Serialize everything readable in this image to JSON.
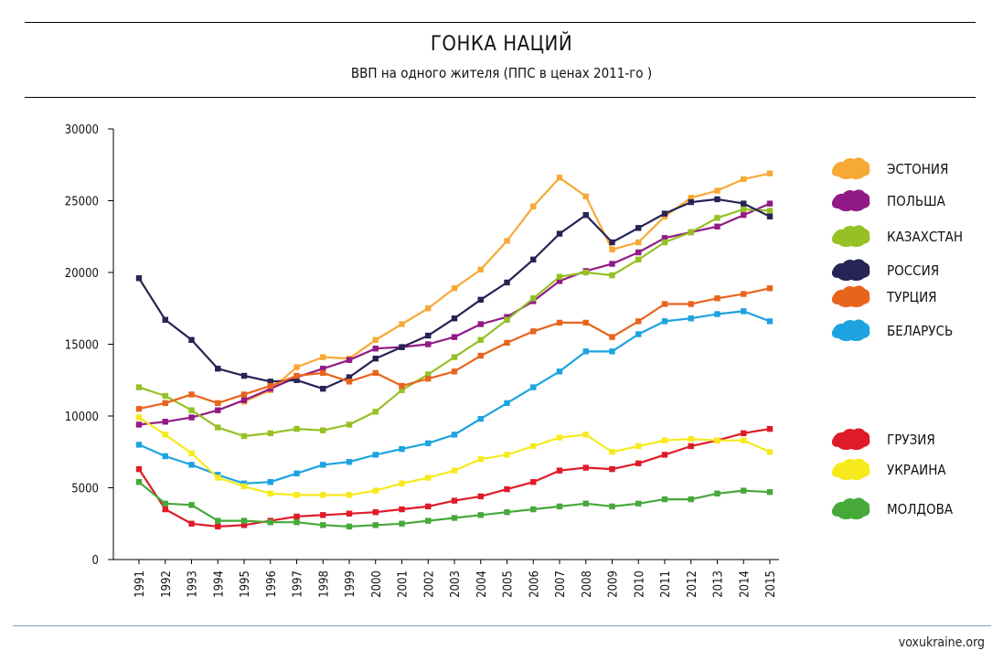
{
  "header": {
    "title": "ГОНКА НАЦИЙ",
    "subtitle": "ВВП на одного жителя (ППС в ценах 2011-го )"
  },
  "footer": {
    "credit": "voxukraine.org"
  },
  "chart_data": {
    "type": "line",
    "title": "ГОНКА НАЦИЙ",
    "subtitle": "ВВП на одного жителя (ППС в ценах 2011-го )",
    "xlabel": "",
    "ylabel": "",
    "ylim": [
      0,
      30000
    ],
    "yticks": [
      "0",
      "5000",
      "10000",
      "15000",
      "20000",
      "25000",
      "30000"
    ],
    "categories": [
      "1991",
      "1992",
      "1993",
      "1994",
      "1995",
      "1996",
      "1997",
      "1998",
      "1999",
      "2000",
      "2001",
      "2002",
      "2003",
      "2004",
      "2005",
      "2006",
      "2007",
      "2008",
      "2009",
      "2010",
      "2011",
      "2012",
      "2013",
      "2014",
      "2015"
    ],
    "series": [
      {
        "name": "ЭСТОНИЯ",
        "color": "#f7a935",
        "icon": "estonia-map-icon",
        "legend_group": "top",
        "values": [
          null,
          null,
          null,
          null,
          11000,
          11800,
          13400,
          14100,
          14000,
          15300,
          16400,
          17500,
          18900,
          20200,
          22200,
          24600,
          26600,
          25300,
          21600,
          22100,
          23900,
          25200,
          25700,
          26500,
          26900
        ]
      },
      {
        "name": "ПОЛЬША",
        "color": "#921a86",
        "icon": "poland-map-icon",
        "legend_group": "top",
        "values": [
          9400,
          9600,
          9900,
          10400,
          11100,
          11900,
          12700,
          13300,
          13900,
          14700,
          14800,
          15000,
          15500,
          16400,
          16900,
          18000,
          19400,
          20100,
          20600,
          21400,
          22400,
          22800,
          23200,
          24000,
          24800
        ]
      },
      {
        "name": "КАЗАХСТАН",
        "color": "#95c124",
        "icon": "kazakhstan-map-icon",
        "legend_group": "top",
        "values": [
          12000,
          11400,
          10400,
          9200,
          8600,
          8800,
          9100,
          9000,
          9400,
          10300,
          11800,
          12900,
          14100,
          15300,
          16700,
          18200,
          19700,
          20000,
          19800,
          20900,
          22100,
          22800,
          23800,
          24400,
          24300
        ]
      },
      {
        "name": "РОССИЯ",
        "color": "#262355",
        "icon": "russia-map-icon",
        "legend_group": "top",
        "values": [
          19600,
          16700,
          15300,
          13300,
          12800,
          12400,
          12500,
          11900,
          12700,
          14000,
          14800,
          15600,
          16800,
          18100,
          19300,
          20900,
          22700,
          24000,
          22100,
          23100,
          24100,
          24900,
          25100,
          24800,
          23900
        ]
      },
      {
        "name": "ТУРЦИЯ",
        "color": "#e8641d",
        "icon": "turkey-map-icon",
        "legend_group": "top",
        "values": [
          10500,
          10900,
          11500,
          10900,
          11500,
          12100,
          12800,
          13000,
          12400,
          13000,
          12100,
          12600,
          13100,
          14200,
          15100,
          15900,
          16500,
          16500,
          15500,
          16600,
          17800,
          17800,
          18200,
          18500,
          18900
        ]
      },
      {
        "name": "БЕЛАРУСЬ",
        "color": "#1da3e0",
        "icon": "belarus-map-icon",
        "legend_group": "top",
        "values": [
          8000,
          7200,
          6600,
          5900,
          5300,
          5400,
          6000,
          6600,
          6800,
          7300,
          7700,
          8100,
          8700,
          9800,
          10900,
          12000,
          13100,
          14500,
          14500,
          15700,
          16600,
          16800,
          17100,
          17300,
          16600
        ]
      },
      {
        "name": "ГРУЗИЯ",
        "color": "#df1b28",
        "icon": "georgia-map-icon",
        "legend_group": "bottom",
        "values": [
          6300,
          3500,
          2500,
          2300,
          2400,
          2700,
          3000,
          3100,
          3200,
          3300,
          3500,
          3700,
          4100,
          4400,
          4900,
          5400,
          6200,
          6400,
          6300,
          6700,
          7300,
          7900,
          8300,
          8800,
          9100
        ]
      },
      {
        "name": "УКРАИНА",
        "color": "#f7ea1c",
        "icon": "ukraine-map-icon",
        "legend_group": "bottom",
        "values": [
          9900,
          8700,
          7400,
          5700,
          5100,
          4600,
          4500,
          4500,
          4500,
          4800,
          5300,
          5700,
          6200,
          7000,
          7300,
          7900,
          8500,
          8700,
          7500,
          7900,
          8300,
          8400,
          8300,
          8300,
          7500
        ]
      },
      {
        "name": "МОЛДОВА",
        "color": "#47a93a",
        "icon": "moldova-map-icon",
        "legend_group": "bottom",
        "values": [
          5400,
          3900,
          3800,
          2700,
          2700,
          2600,
          2600,
          2400,
          2300,
          2400,
          2500,
          2700,
          2900,
          3100,
          3300,
          3500,
          3700,
          3900,
          3700,
          3900,
          4200,
          4200,
          4600,
          4800,
          4700
        ]
      }
    ]
  }
}
